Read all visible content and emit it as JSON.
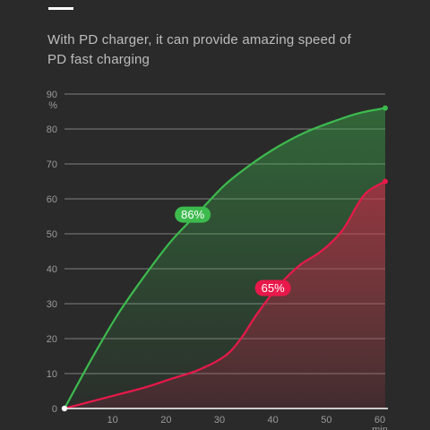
{
  "header": {
    "subtitle_line1": "With PD charger, it can provide amazing speed of",
    "subtitle_line2": "PD fast charging"
  },
  "colors": {
    "background": "#2a2a2a",
    "pd_series": "#3dba4e",
    "other_series": "#e8194a",
    "grid": "#8a8a8a"
  },
  "chart_data": {
    "type": "area",
    "title": "",
    "xlabel": "min",
    "ylabel": "%",
    "xlim": [
      0,
      60
    ],
    "ylim": [
      0,
      90
    ],
    "x_ticks": [
      "10",
      "20",
      "30",
      "40",
      "50",
      "60"
    ],
    "y_ticks": [
      "0",
      "10",
      "20",
      "30",
      "40",
      "50",
      "60",
      "70",
      "80",
      "90"
    ],
    "grid": "horizontal",
    "series": [
      {
        "name": "",
        "label": "86%",
        "color": "#3dba4e",
        "x": [
          0,
          5,
          10,
          15,
          20,
          25,
          30,
          35,
          40,
          45,
          50,
          55,
          60
        ],
        "y": [
          0,
          14,
          27,
          38,
          48,
          56,
          64,
          70,
          75,
          79,
          82,
          84.5,
          86
        ]
      },
      {
        "name": "",
        "label": "65%",
        "color": "#e8194a",
        "x": [
          0,
          5,
          10,
          15,
          20,
          25,
          30,
          33,
          36,
          40,
          44,
          48,
          52,
          56,
          60
        ],
        "y": [
          0,
          2,
          4,
          6,
          8.5,
          11,
          15,
          20,
          27,
          35,
          41,
          45,
          51,
          61,
          65
        ]
      }
    ]
  }
}
